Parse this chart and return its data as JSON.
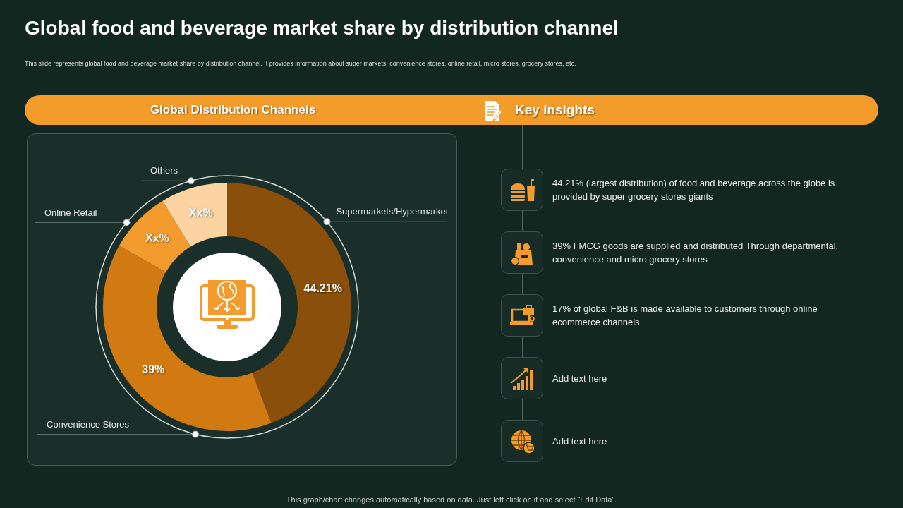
{
  "chart_data": {
    "type": "donut",
    "title": "Global food and beverage market share by distribution channel",
    "subtitle": "This slide represents global food and beverage market share by distribution channel. It provides information about super markets, convenience stores, online retail, micro stores, grocery stores, etc.",
    "categories": [
      "Supermarkets/Hypermarket",
      "Convenience Stores",
      "Online Retail",
      "Others"
    ],
    "values": [
      44.21,
      39,
      8.1,
      8.7
    ],
    "colors": [
      "#8a4f0a",
      "#d27a12",
      "#f39b2d",
      "#fcd4a2"
    ],
    "value_labels": [
      "44.21%",
      "39%",
      "Xx%",
      "Xx%"
    ],
    "annotations": [
      "Global Distribution Channels",
      "Key Insights",
      "44.21% (largest distribution) of food and beverage across the globe is provided by super grocery stores giants",
      "39% FMCG goods are supplied and distributed Through departmental, convenience and micro grocery stores",
      "17% of global F&B is made available to customers through online ecommerce channels",
      "Add text here",
      "Add text here",
      "This graph/chart changes automatically based on data. Just left click on it and select “Edit Data”."
    ]
  }
}
